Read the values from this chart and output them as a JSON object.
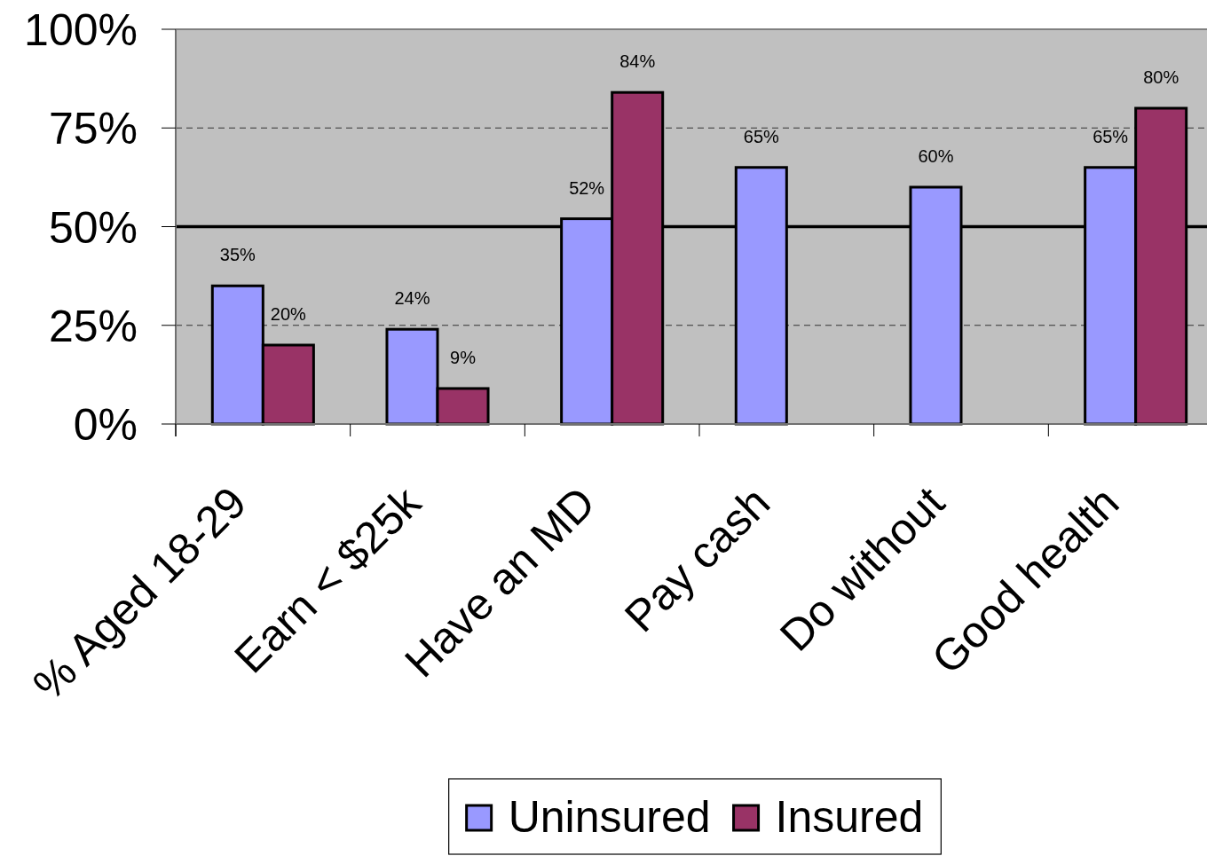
{
  "chart_data": {
    "type": "bar",
    "categories": [
      "% Aged 18-29",
      "Earn < $25k",
      "Have an MD",
      "Pay cash",
      "Do without",
      "Good health"
    ],
    "series": [
      {
        "name": "Uninsured",
        "color": "#9999ff",
        "values": [
          35,
          24,
          52,
          65,
          60,
          65
        ],
        "value_labels": [
          "35%",
          "24%",
          "52%",
          "65%",
          "60%",
          "65%"
        ]
      },
      {
        "name": "Insured",
        "color": "#993366",
        "values": [
          20,
          9,
          84,
          null,
          null,
          80
        ],
        "value_labels": [
          "20%",
          "9%",
          "84%",
          null,
          null,
          "80%"
        ]
      }
    ],
    "ylim": [
      0,
      100
    ],
    "yticks": [
      {
        "value": 0,
        "label": "0%"
      },
      {
        "value": 25,
        "label": "25%"
      },
      {
        "value": 50,
        "label": "50%"
      },
      {
        "value": 75,
        "label": "75%"
      },
      {
        "value": 100,
        "label": "100%"
      }
    ],
    "grid": "y",
    "legend": "bottom",
    "ref_lines": [
      {
        "axis": "y",
        "value": 50,
        "color": "#000000"
      }
    ]
  }
}
